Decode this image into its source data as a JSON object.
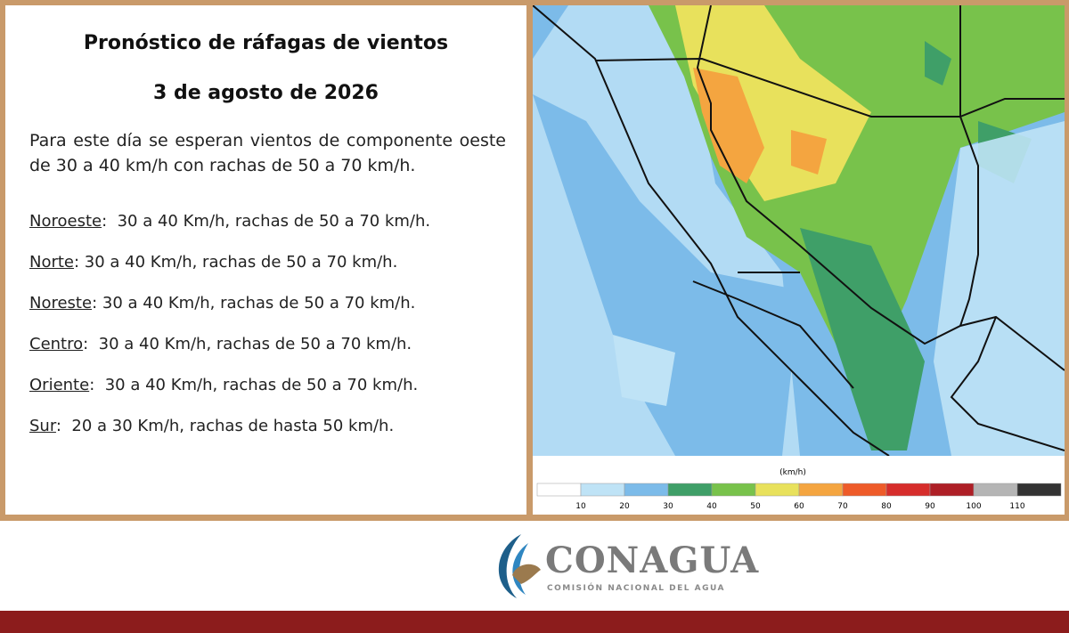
{
  "panel": {
    "title": "Pronóstico de ráfagas de vientos",
    "date": "3 de agosto de 2026",
    "intro": "Para este día se esperan vientos de componente oeste de 30 a 40 km/h con rachas de 50 a 70 km/h.",
    "regions": [
      {
        "name": "Noroeste",
        "text": ":  30 a 40 Km/h, rachas de 50 a 70 km/h."
      },
      {
        "name": "Norte",
        "text": ": 30 a 40 Km/h, rachas de 50 a 70 km/h."
      },
      {
        "name": "Noreste",
        "text": ": 30 a 40 Km/h, rachas de 50 a 70 km/h."
      },
      {
        "name": "Centro",
        "text": ":  30 a 40 Km/h, rachas de 50 a 70 km/h."
      },
      {
        "name": "Oriente",
        "text": ":  30 a 40 Km/h, rachas de 50 a 70 km/h."
      },
      {
        "name": "Sur",
        "text": ":  20 a 30 Km/h, rachas de hasta 50 km/h."
      }
    ]
  },
  "legend": {
    "unit": "(km/h)",
    "ticks": [
      10,
      20,
      30,
      40,
      50,
      60,
      70,
      80,
      90,
      100,
      110
    ],
    "colors": [
      "#ffffff",
      "#bfe3f6",
      "#7cbbe9",
      "#3f9f68",
      "#78c24b",
      "#e8e15c",
      "#f4a540",
      "#ee5b29",
      "#d62d2b",
      "#ae1f26",
      "#b5b5b5",
      "#333333"
    ]
  },
  "logo": {
    "name": "CONAGUA",
    "subtitle": "COMISIÓN NACIONAL DEL AGUA"
  }
}
